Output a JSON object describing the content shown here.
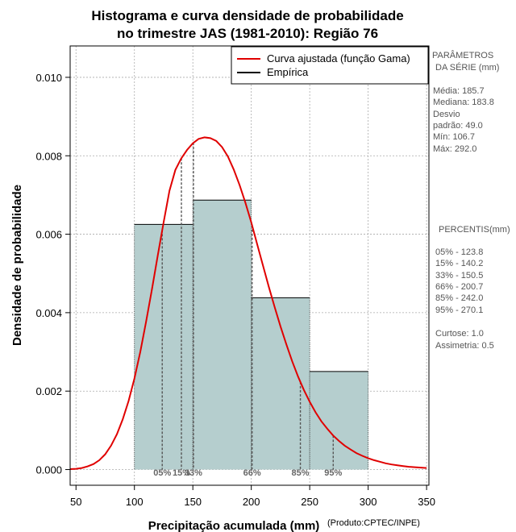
{
  "chart_data": {
    "type": "histogram",
    "title_line1": "Histograma e curva densidade de probabilidade",
    "title_line2": "no trimestre JAS (1981-2010): Região 76",
    "xlabel": "Precipitação acumulada (mm)",
    "ylabel": "Densidade de probabilidade",
    "credit": "(Produto:CPTEC/INPE)",
    "xlim": [
      45,
      352
    ],
    "ylim": [
      -0.0004,
      0.0108
    ],
    "x_ticks": [
      50,
      100,
      150,
      200,
      250,
      300,
      350
    ],
    "y_ticks": [
      0.0,
      0.002,
      0.004,
      0.006,
      0.008,
      0.01
    ],
    "y_tick_labels": [
      "0.000",
      "0.002",
      "0.004",
      "0.006",
      "0.008",
      "0.010"
    ],
    "bins": [
      {
        "from": 100,
        "to": 150,
        "density": 0.00625
      },
      {
        "from": 150,
        "to": 200,
        "density": 0.00687
      },
      {
        "from": 200,
        "to": 250,
        "density": 0.00438
      },
      {
        "from": 250,
        "to": 300,
        "density": 0.0025
      }
    ],
    "fitted_curve": {
      "name": "Curva ajustada (função Gama)",
      "color": "#e00000",
      "x": [
        45,
        50,
        55,
        60,
        65,
        70,
        75,
        80,
        85,
        90,
        95,
        100,
        105,
        110,
        115,
        120,
        125,
        130,
        135,
        140,
        145,
        150,
        155,
        160,
        165,
        170,
        175,
        180,
        185,
        190,
        195,
        200,
        205,
        210,
        215,
        220,
        225,
        230,
        235,
        240,
        245,
        250,
        255,
        260,
        265,
        270,
        275,
        280,
        285,
        290,
        295,
        300,
        305,
        310,
        315,
        320,
        325,
        330,
        335,
        340,
        345,
        350
      ],
      "y": [
        1e-05,
        2e-05,
        4e-05,
        8e-05,
        0.00014,
        0.00024,
        0.00039,
        0.00061,
        0.0009,
        0.00128,
        0.00175,
        0.00232,
        0.003,
        0.00377,
        0.0046,
        0.00546,
        0.00631,
        0.00711,
        0.00764,
        0.00793,
        0.00815,
        0.00832,
        0.00843,
        0.00847,
        0.00845,
        0.00838,
        0.00822,
        0.00798,
        0.00765,
        0.00725,
        0.0068,
        0.0063,
        0.00575,
        0.0052,
        0.00466,
        0.00414,
        0.00365,
        0.00319,
        0.00276,
        0.00237,
        0.00203,
        0.00173,
        0.00146,
        0.00123,
        0.00104,
        0.00087,
        0.00073,
        0.00061,
        0.00051,
        0.00042,
        0.00035,
        0.00029,
        0.00024,
        0.0002,
        0.00016,
        0.00013,
        0.00011,
        9e-05,
        7e-05,
        6e-05,
        5e-05,
        4e-05
      ]
    },
    "empirical": {
      "name": "Empírica",
      "color": "#000000"
    },
    "percentiles": [
      {
        "label": "05%",
        "x": 123.8
      },
      {
        "label": "15%",
        "x": 140.2
      },
      {
        "label": "33%",
        "x": 150.5
      },
      {
        "label": "66%",
        "x": 200.7
      },
      {
        "label": "85%",
        "x": 242.0
      },
      {
        "label": "95%",
        "x": 270.1
      }
    ],
    "bar_color": "#b5cece"
  },
  "side_panel": {
    "params_title_1": "PARÂMETROS",
    "params_title_2": "DA SÉRIE (mm)",
    "stats": [
      "Média:  185.7",
      "Mediana:  183.8",
      "Desvio",
      "padrão:  49.0",
      "Mín:  106.7",
      "Máx:  292.0"
    ],
    "percentis_title": "PERCENTIS(mm)",
    "percentis": [
      "05% -  123.8",
      "15% -  140.2",
      "33% -  150.5",
      "66% -  200.7",
      "85% -  242.0",
      "95% -  270.1"
    ],
    "curtose": "Curtose:  1.0",
    "assimetria": "Assimetria:  0.5"
  }
}
